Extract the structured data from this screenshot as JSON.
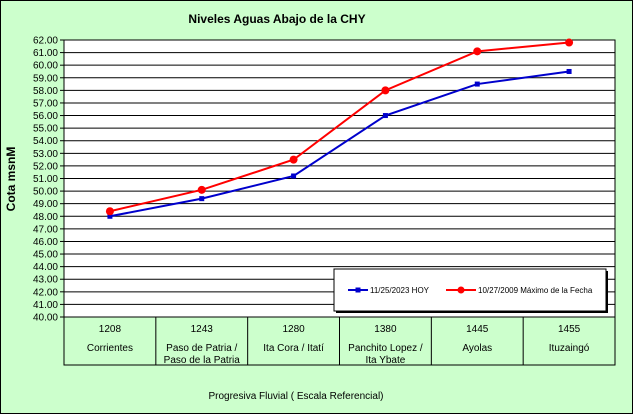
{
  "chart_data": {
    "type": "line",
    "title": "Niveles Aguas Abajo de la CHY",
    "ylabel": "Cota msnM",
    "xlabel": "Progresiva Fluvial ( Escala Referencial)",
    "ylim": [
      40.0,
      62.0
    ],
    "y_tick_step": 1.0,
    "grid": true,
    "legend_position": "bottom-right",
    "categories": [
      {
        "km": "1208",
        "name": [
          "Corrientes"
        ]
      },
      {
        "km": "1243",
        "name": [
          "Paso de Patria /",
          "Paso de la Patria"
        ]
      },
      {
        "km": "1280",
        "name": [
          "Ita Cora / Itatí"
        ]
      },
      {
        "km": "1380",
        "name": [
          "Panchito Lopez /",
          "Ita Ybate"
        ]
      },
      {
        "km": "1445",
        "name": [
          "Ayolas"
        ]
      },
      {
        "km": "1455",
        "name": [
          "Ituzaingó"
        ]
      }
    ],
    "series": [
      {
        "name": "11/25/2023 HOY",
        "color": "#0000cc",
        "marker": "square",
        "values": [
          48.0,
          49.4,
          51.2,
          56.0,
          58.5,
          59.5
        ]
      },
      {
        "name": "10/27/2009 Máximo de la Fecha",
        "color": "#ff0000",
        "marker": "circle",
        "values": [
          48.4,
          50.1,
          52.5,
          58.0,
          61.1,
          61.8
        ]
      }
    ]
  }
}
